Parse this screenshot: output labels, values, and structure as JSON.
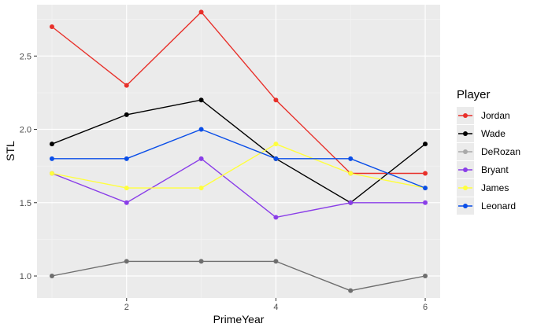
{
  "chart_data": {
    "type": "line",
    "xlabel": "PrimeYear",
    "ylabel": "STL",
    "xlim": [
      0.8,
      6.2
    ],
    "ylim": [
      0.85,
      2.85
    ],
    "x_ticks": [
      2,
      4,
      6
    ],
    "x_tick_labels": [
      "2",
      "4",
      "6"
    ],
    "y_ticks": [
      1.0,
      1.5,
      2.0,
      2.5
    ],
    "y_tick_labels": [
      "1.0",
      "1.5",
      "2.0",
      "2.5"
    ],
    "grid": true,
    "legend_title": "Player",
    "legend_position": "right",
    "x": [
      1,
      2,
      3,
      4,
      5,
      6
    ],
    "series": [
      {
        "name": "Jordan",
        "color": "#e8302a",
        "values": [
          2.7,
          2.3,
          2.8,
          2.2,
          1.7,
          1.7
        ]
      },
      {
        "name": "Wade",
        "color": "#000000",
        "values": [
          1.9,
          2.1,
          2.2,
          1.8,
          1.5,
          1.9
        ]
      },
      {
        "name": "DeRozan",
        "color": "#6e6e6e",
        "legend_color": "#a9a9a9",
        "values": [
          1.0,
          1.1,
          1.1,
          1.1,
          0.9,
          1.0
        ]
      },
      {
        "name": "Bryant",
        "color": "#8a3ee8",
        "values": [
          1.7,
          1.5,
          1.8,
          1.4,
          1.5,
          1.5
        ]
      },
      {
        "name": "James",
        "color": "#ffff3c",
        "values": [
          1.7,
          1.6,
          1.6,
          1.9,
          1.7,
          1.6
        ]
      },
      {
        "name": "Leonard",
        "color": "#0a4ee8",
        "values": [
          1.8,
          1.8,
          2.0,
          1.8,
          1.8,
          1.6
        ]
      }
    ]
  }
}
